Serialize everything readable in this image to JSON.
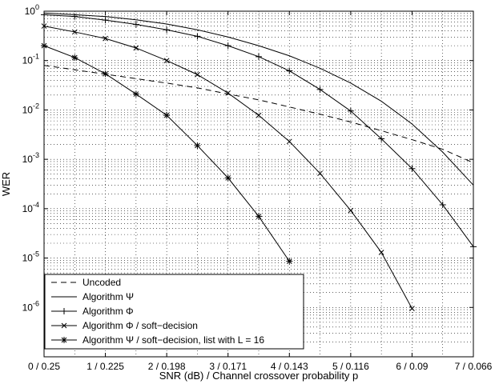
{
  "chart_data": {
    "type": "line",
    "xlabel": "SNR (dB) / Channel crossover probability p",
    "ylabel": "WER",
    "yscale": "log",
    "xlim": [
      0,
      7
    ],
    "ylim_exponents": [
      -7,
      0
    ],
    "grid": "dotted, major and minor",
    "legend_placement": "bottom-left",
    "x_tick_labels": [
      "0 / 0.25",
      "1 / 0.225",
      "2 / 0.198",
      "3 / 0.171",
      "4 / 0.143",
      "5 / 0.116",
      "6 / 0.09",
      "7 / 0.066"
    ],
    "y_tick_base": "10",
    "y_tick_exponents": [
      "0",
      "-1",
      "-2",
      "-3",
      "-4",
      "-5",
      "-6"
    ],
    "series": [
      {
        "name": "Uncoded",
        "style": "dashed",
        "marker": "none",
        "points": [
          [
            0,
            0.08
          ],
          [
            0.5,
            0.065
          ],
          [
            1,
            0.053
          ],
          [
            1.5,
            0.043
          ],
          [
            2,
            0.035
          ],
          [
            2.5,
            0.028
          ],
          [
            3,
            0.021
          ],
          [
            3.5,
            0.016
          ],
          [
            4,
            0.0115
          ],
          [
            4.5,
            0.0082
          ],
          [
            5,
            0.0057
          ],
          [
            5.5,
            0.0038
          ],
          [
            6,
            0.0025
          ],
          [
            6.5,
            0.0016
          ],
          [
            7,
            0.00085
          ]
        ]
      },
      {
        "name": "Algorithm Ψ",
        "style": "solid",
        "marker": "none",
        "points": [
          [
            0,
            0.92
          ],
          [
            0.5,
            0.85
          ],
          [
            1,
            0.78
          ],
          [
            1.5,
            0.67
          ],
          [
            2,
            0.55
          ],
          [
            2.5,
            0.42
          ],
          [
            3,
            0.3
          ],
          [
            3.5,
            0.2
          ],
          [
            4,
            0.125
          ],
          [
            4.5,
            0.07
          ],
          [
            5,
            0.035
          ],
          [
            5.5,
            0.015
          ],
          [
            6,
            0.0052
          ],
          [
            6.5,
            0.0014
          ],
          [
            7,
            0.0003
          ]
        ]
      },
      {
        "name": "Algorithm Φ",
        "style": "solid",
        "marker": "plus",
        "points": [
          [
            0,
            0.85
          ],
          [
            0.5,
            0.78
          ],
          [
            1,
            0.66
          ],
          [
            1.5,
            0.54
          ],
          [
            2,
            0.42
          ],
          [
            2.5,
            0.31
          ],
          [
            3,
            0.2
          ],
          [
            3.5,
            0.12
          ],
          [
            4,
            0.062
          ],
          [
            4.5,
            0.026
          ],
          [
            5,
            0.0095
          ],
          [
            5.5,
            0.0026
          ],
          [
            6,
            0.00065
          ],
          [
            6.5,
            0.00012
          ],
          [
            7,
            1.7e-05
          ]
        ]
      },
      {
        "name": "Algorithm Φ / soft−decision",
        "style": "solid",
        "marker": "x",
        "points": [
          [
            0,
            0.5
          ],
          [
            0.5,
            0.38
          ],
          [
            1,
            0.28
          ],
          [
            1.5,
            0.18
          ],
          [
            2,
            0.1
          ],
          [
            2.5,
            0.052
          ],
          [
            3,
            0.022
          ],
          [
            3.5,
            0.0078
          ],
          [
            4,
            0.0023
          ],
          [
            4.5,
            0.00052
          ],
          [
            5,
            9.2e-05
          ],
          [
            5.5,
            1.3e-05
          ],
          [
            6,
            9.5e-07
          ]
        ]
      },
      {
        "name": "Algorithm Ψ / soft−decision, list with L = 16",
        "style": "solid",
        "marker": "star",
        "points": [
          [
            0,
            0.2
          ],
          [
            0.5,
            0.115
          ],
          [
            1,
            0.054
          ],
          [
            1.5,
            0.021
          ],
          [
            2,
            0.0078
          ],
          [
            2.5,
            0.0019
          ],
          [
            3,
            0.00042
          ],
          [
            3.5,
            7e-05
          ],
          [
            4,
            8.6e-06
          ]
        ]
      }
    ]
  }
}
